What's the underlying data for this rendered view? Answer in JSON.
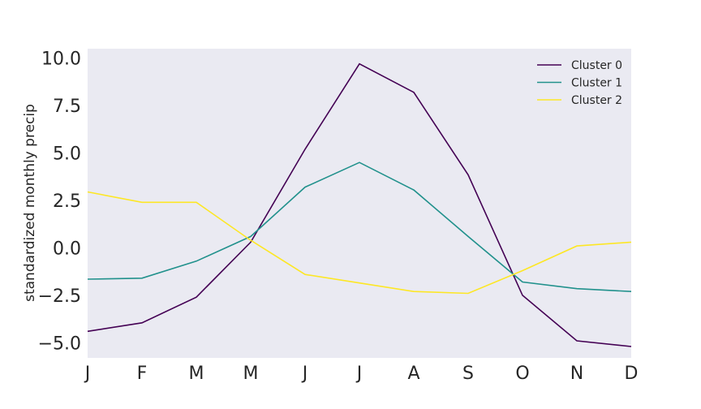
{
  "chart_data": {
    "type": "line",
    "title": "",
    "xlabel": "",
    "ylabel": "standardized monthly precip",
    "categories": [
      "J",
      "F",
      "M",
      "M",
      "J",
      "J",
      "A",
      "S",
      "O",
      "N",
      "D"
    ],
    "ylim": [
      -5.8,
      10.5
    ],
    "yticks": [
      "10.0",
      "7.5",
      "5.0",
      "2.5",
      "0.0",
      "−2.5",
      "−5.0"
    ],
    "ytick_values": [
      10.0,
      7.5,
      5.0,
      2.5,
      0.0,
      -2.5,
      -5.0
    ],
    "grid": false,
    "legend_position": "top-right",
    "background": "#eaeaf2",
    "series": [
      {
        "name": "Cluster 0",
        "color": "#440154",
        "values": [
          -4.4,
          -3.95,
          -2.6,
          0.3,
          5.2,
          9.7,
          8.2,
          3.85,
          -2.5,
          -4.9,
          -5.2
        ]
      },
      {
        "name": "Cluster 1",
        "color": "#21918c",
        "values": [
          -1.65,
          -1.6,
          -0.7,
          0.6,
          3.2,
          4.5,
          3.05,
          0.6,
          -1.8,
          -2.15,
          -2.3
        ]
      },
      {
        "name": "Cluster 2",
        "color": "#fde725",
        "values": [
          2.95,
          2.4,
          2.4,
          0.4,
          -1.4,
          -1.85,
          -2.3,
          -2.4,
          -1.2,
          0.1,
          0.3
        ]
      }
    ]
  }
}
